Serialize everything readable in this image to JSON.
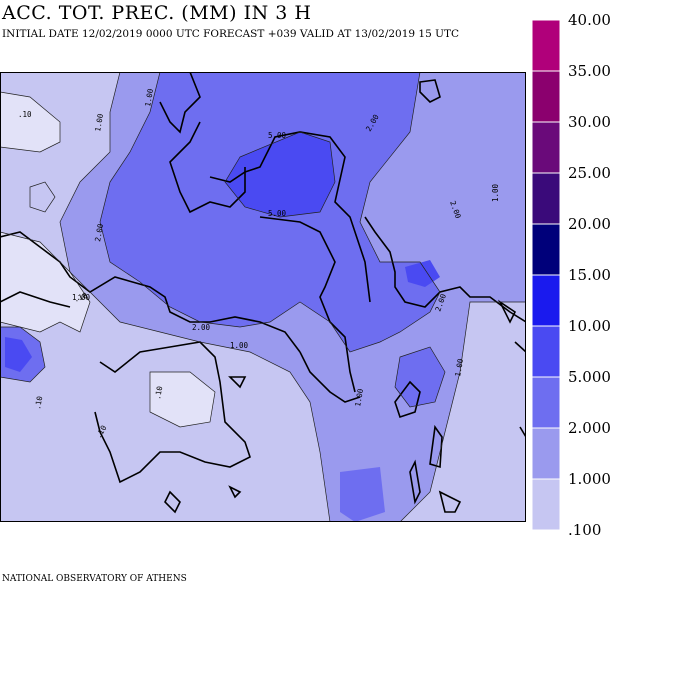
{
  "header": {
    "title": "ACC. TOT. PREC. (MM) IN 3 H",
    "subtitle": "INITIAL DATE 12/02/2019   0000 UTC  FORECAST +039 VALID AT  13/02/2019  15 UTC"
  },
  "footer": {
    "credit": "NATIONAL OBSERVATORY OF ATHENS"
  },
  "legend": {
    "bins": [
      {
        "label": "40.00",
        "color": "#b0007a"
      },
      {
        "label": "35.00",
        "color": "#8b006e"
      },
      {
        "label": "30.00",
        "color": "#6a0a7a"
      },
      {
        "label": "25.00",
        "color": "#3a0a7a"
      },
      {
        "label": "20.00",
        "color": "#00007a"
      },
      {
        "label": "15.00",
        "color": "#1a1aee"
      },
      {
        "label": "10.00",
        "color": "#4a4af2"
      },
      {
        "label": "5.000",
        "color": "#6e6ef0"
      },
      {
        "label": "2.000",
        "color": "#9a9aee"
      },
      {
        "label": "1.000",
        "color": "#c6c6f2"
      },
      {
        "label": ".100",
        "color": "#e2e2f8"
      }
    ]
  },
  "map": {
    "contour_labels": [
      "1.00",
      "1.00",
      "1.00",
      "1.00",
      "2.00",
      "2.00",
      "2.00",
      "2.00",
      "2.00",
      "5.00",
      "5.00",
      "1.00",
      ".10",
      ".10",
      ".10",
      ".10",
      ".10",
      "1.00",
      "1.00"
    ]
  }
}
